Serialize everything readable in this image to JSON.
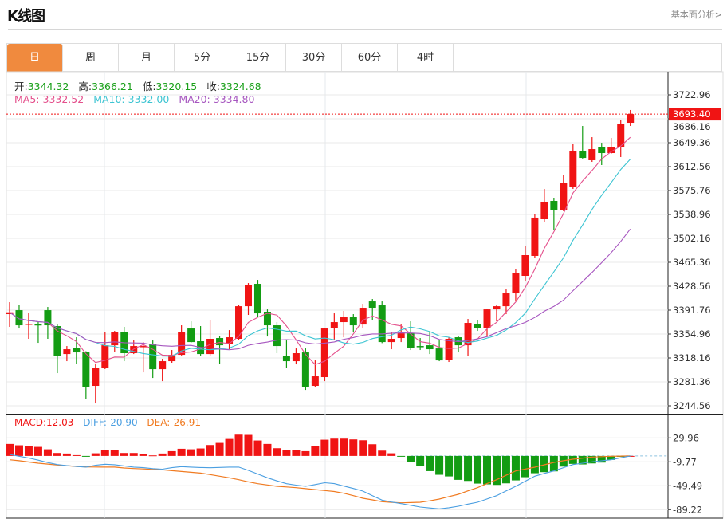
{
  "header": {
    "title": "K线图",
    "link": "基本面分析>"
  },
  "tabs": [
    {
      "label": "日",
      "active": true
    },
    {
      "label": "周",
      "active": false
    },
    {
      "label": "月",
      "active": false
    },
    {
      "label": "5分",
      "active": false
    },
    {
      "label": "15分",
      "active": false
    },
    {
      "label": "30分",
      "active": false
    },
    {
      "label": "60分",
      "active": false
    },
    {
      "label": "4时",
      "active": false
    }
  ],
  "ohlc_legend": {
    "open_label": "开:",
    "open": "3344.32",
    "high_label": "高:",
    "high": "3366.21",
    "low_label": "低:",
    "low": "3320.15",
    "close_label": "收:",
    "close": "3324.68"
  },
  "ma_legend": {
    "ma5_label": "MA5:",
    "ma5": "3332.52",
    "ma10_label": "MA10:",
    "ma10": "3332.00",
    "ma20_label": "MA20:",
    "ma20": "3334.80"
  },
  "macd_legend": {
    "macd_label": "MACD:",
    "macd": "12.03",
    "diff_label": "DIFF:",
    "diff": "-20.90",
    "dea_label": "DEA:",
    "dea": "-26.91"
  },
  "last_price": "3693.40",
  "colors": {
    "up": "#f01414",
    "down": "#139c13",
    "ma5": "#e4508c",
    "ma10": "#3cc4d2",
    "ma20": "#a655bf",
    "diff": "#4b9fe1",
    "dea": "#f07b22",
    "active_tab": "#f08a3e",
    "legend_value": "#1aa01a"
  },
  "chart_data": [
    {
      "type": "candlestick",
      "ma_periods": [
        5,
        10,
        20
      ],
      "ylim": [
        3244.56,
        3722.96
      ],
      "y_ticks": [
        "3722.96",
        "3686.16",
        "3649.36",
        "3612.56",
        "3575.76",
        "3538.96",
        "3502.16",
        "3465.36",
        "3428.56",
        "3391.76",
        "3354.96",
        "3318.16",
        "3281.36",
        "3244.56"
      ],
      "grid": true,
      "candles_ohlc": [
        [
          3385.6,
          3404.0,
          3366.0,
          3388.4
        ],
        [
          3391.7,
          3400.3,
          3363.5,
          3368.4
        ],
        [
          3369.6,
          3388.0,
          3347.6,
          3370.9
        ],
        [
          3370.0,
          3374.5,
          3341.4,
          3368.4
        ],
        [
          3391.7,
          3396.6,
          3347.6,
          3368.4
        ],
        [
          3367.2,
          3369.6,
          3294.8,
          3321.8
        ],
        [
          3324.2,
          3336.5,
          3313.2,
          3331.6
        ],
        [
          3334.1,
          3350.0,
          3309.5,
          3326.7
        ],
        [
          3327.9,
          3328.5,
          3255.5,
          3273.9
        ],
        [
          3275.2,
          3309.5,
          3248.2,
          3302.2
        ],
        [
          3302.2,
          3357.4,
          3301.0,
          3337.7
        ],
        [
          3337.7,
          3359.8,
          3327.9,
          3357.4
        ],
        [
          3358.6,
          3366.0,
          3313.2,
          3325.5
        ],
        [
          3325.5,
          3345.1,
          3324.2,
          3336.5
        ],
        [
          3335.3,
          3342.6,
          3296.0,
          3336.5
        ],
        [
          3339.0,
          3345.1,
          3287.4,
          3300.9
        ],
        [
          3300.9,
          3316.9,
          3282.5,
          3313.2
        ],
        [
          3313.2,
          3330.4,
          3310.8,
          3323.0
        ],
        [
          3323.0,
          3368.4,
          3322.0,
          3357.4
        ],
        [
          3363.5,
          3374.5,
          3341.5,
          3342.6
        ],
        [
          3343.9,
          3367.2,
          3320.6,
          3324.2
        ],
        [
          3324.2,
          3377.0,
          3320.6,
          3347.6
        ],
        [
          3348.8,
          3352.5,
          3309.5,
          3337.7
        ],
        [
          3340.2,
          3361.0,
          3331.6,
          3350.0
        ],
        [
          3347.6,
          3400.3,
          3346.3,
          3397.8
        ],
        [
          3397.8,
          3433.4,
          3384.4,
          3431.0
        ],
        [
          3432.2,
          3438.3,
          3381.9,
          3386.8
        ],
        [
          3389.3,
          3392.9,
          3351.2,
          3368.4
        ],
        [
          3368.4,
          3373.3,
          3325.5,
          3336.5
        ],
        [
          3320.6,
          3345.1,
          3302.2,
          3313.2
        ],
        [
          3313.2,
          3332.8,
          3308.3,
          3325.5
        ],
        [
          3326.7,
          3332.8,
          3269.0,
          3273.9
        ],
        [
          3275.2,
          3314.4,
          3274.0,
          3289.9
        ],
        [
          3288.7,
          3363.5,
          3282.5,
          3363.5
        ],
        [
          3364.7,
          3386.8,
          3346.3,
          3373.3
        ],
        [
          3373.3,
          3390.5,
          3350.0,
          3380.7
        ],
        [
          3380.7,
          3385.6,
          3357.4,
          3368.4
        ],
        [
          3369.6,
          3401.5,
          3364.7,
          3395.4
        ],
        [
          3405.2,
          3408.9,
          3377.0,
          3395.4
        ],
        [
          3399.1,
          3405.2,
          3341.0,
          3342.6
        ],
        [
          3342.6,
          3357.4,
          3331.6,
          3347.6
        ],
        [
          3348.8,
          3369.6,
          3342.6,
          3356.1
        ],
        [
          3356.1,
          3374.5,
          3330.4,
          3334.1
        ],
        [
          3336.5,
          3348.8,
          3330.4,
          3335.3
        ],
        [
          3337.7,
          3358.6,
          3324.2,
          3331.6
        ],
        [
          3332.8,
          3345.1,
          3313.2,
          3314.4
        ],
        [
          3315.7,
          3350.0,
          3312.0,
          3347.6
        ],
        [
          3350.0,
          3352.5,
          3326.7,
          3337.7
        ],
        [
          3337.7,
          3378.2,
          3321.8,
          3372.1
        ],
        [
          3370.9,
          3375.8,
          3359.8,
          3364.7
        ],
        [
          3364.7,
          3393.5,
          3351.2,
          3392.9
        ],
        [
          3392.9,
          3399.1,
          3374.5,
          3397.8
        ],
        [
          3397.8,
          3423.6,
          3385.6,
          3417.5
        ],
        [
          3417.5,
          3454.3,
          3406.5,
          3448.2
        ],
        [
          3444.5,
          3489.9,
          3437.1,
          3476.4
        ],
        [
          3475.2,
          3540.2,
          3471.5,
          3534.1
        ],
        [
          3531.6,
          3578.2,
          3527.9,
          3558.6
        ],
        [
          3559.8,
          3564.7,
          3514.4,
          3545.1
        ],
        [
          3545.1,
          3600.3,
          3544.0,
          3586.8
        ],
        [
          3581.9,
          3646.9,
          3578.2,
          3635.9
        ],
        [
          3635.9,
          3675.1,
          3625.0,
          3626.0
        ],
        [
          3622.4,
          3657.9,
          3619.9,
          3639.5
        ],
        [
          3642.0,
          3649.3,
          3615.0,
          3633.4
        ],
        [
          3633.4,
          3656.7,
          3632.2,
          3643.2
        ],
        [
          3643.2,
          3684.9,
          3627.3,
          3678.8
        ],
        [
          3680.0,
          3699.7,
          3675.1,
          3693.4
        ]
      ]
    },
    {
      "type": "bar+line",
      "y_ticks": [
        "29.96",
        "-9.77",
        "-49.49",
        "-89.22"
      ],
      "grid": true,
      "macd_histogram": [
        19.9,
        17.7,
        16.8,
        15.0,
        11.0,
        4.9,
        4.0,
        1.3,
        -0.9,
        4.4,
        9.3,
        9.3,
        4.9,
        4.9,
        3.1,
        0.9,
        4.0,
        7.9,
        11.9,
        11.0,
        12.4,
        18.1,
        21.6,
        28.2,
        35.3,
        34.9,
        25.6,
        19.9,
        12.8,
        9.7,
        9.7,
        7.9,
        16.3,
        26.9,
        28.7,
        28.7,
        27.4,
        26.0,
        19.4,
        8.8,
        4.4,
        -0.9,
        -10.2,
        -17.2,
        -25.2,
        -31.3,
        -34.0,
        -39.7,
        -41.5,
        -45.9,
        -47.2,
        -48.1,
        -45.5,
        -40.6,
        -35.3,
        -28.7,
        -26.9,
        -25.6,
        -17.7,
        -13.2,
        -14.1,
        -12.4,
        -11.0,
        -6.6,
        -1.5,
        0
      ],
      "diff": [
        2.5,
        -0.5,
        -3.5,
        -7,
        -11,
        -14.3,
        -16,
        -17.5,
        -18.5,
        -15.5,
        -13.8,
        -14.5,
        -16.5,
        -18.5,
        -19.5,
        -21,
        -22,
        -19.5,
        -17.7,
        -18.5,
        -19.2,
        -19.6,
        -19,
        -18.5,
        -18.5,
        -24,
        -30,
        -36.3,
        -41.5,
        -46.1,
        -48.5,
        -50.4,
        -47.5,
        -44.5,
        -46,
        -50,
        -54,
        -58.4,
        -66,
        -73.4,
        -76.5,
        -79.2,
        -82,
        -84.9,
        -86.5,
        -87.9,
        -86,
        -83.5,
        -80,
        -76.9,
        -71.5,
        -65.9,
        -58,
        -50.4,
        -42,
        -33.6,
        -29,
        -24.9,
        -19.5,
        -14.3,
        -12,
        -9.8,
        -8,
        -6.3,
        -3,
        0
      ],
      "dea": [
        -6.3,
        -8,
        -10,
        -12,
        -13.5,
        -15.1,
        -16.2,
        -17.5,
        -18.2,
        -18.4,
        -18.5,
        -18.6,
        -20,
        -20.9,
        -21.6,
        -22.4,
        -23.1,
        -24.5,
        -25.8,
        -27.1,
        -28.4,
        -31,
        -33.6,
        -36.3,
        -39.5,
        -43,
        -46.1,
        -48.2,
        -50.4,
        -51.5,
        -52.7,
        -54.3,
        -55.9,
        -57.5,
        -59,
        -62,
        -66,
        -70.3,
        -73,
        -76,
        -77,
        -77.9,
        -77.5,
        -76.9,
        -74.5,
        -71.6,
        -67.5,
        -63.7,
        -58,
        -52.7,
        -46,
        -39.5,
        -32,
        -24.9,
        -21.8,
        -18.7,
        -14.7,
        -10.7,
        -8,
        -5.4,
        -3.6,
        -1.9,
        -1.2,
        -0.5,
        -0.2,
        0
      ]
    }
  ]
}
